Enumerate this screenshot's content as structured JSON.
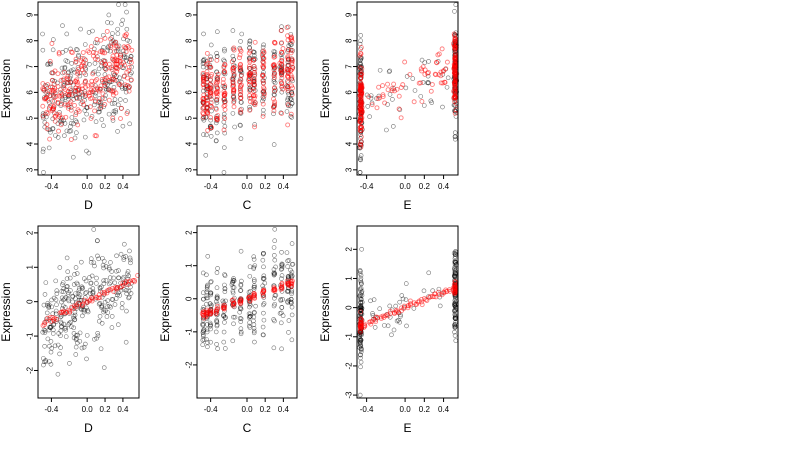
{
  "chart_data": [
    {
      "type": "scatter",
      "xlabel": "D",
      "ylabel": "Expression",
      "xlim": [
        -0.55,
        0.58
      ],
      "ylim": [
        2.8,
        9.5
      ],
      "xticks": [
        -0.4,
        0.0,
        0.2,
        0.4
      ],
      "xtick_labels": [
        "-0.4",
        "0.0",
        "0.2",
        "0.4"
      ],
      "yticks": [
        3,
        4,
        5,
        6,
        7,
        8,
        9
      ],
      "ytick_labels": [
        "3",
        "4",
        "5",
        "6",
        "7",
        "8",
        "9"
      ],
      "series": [
        {
          "color": "#000000",
          "kind": "observed",
          "x_center": 0.0,
          "x_spread": 0.5,
          "y_center": 6.3,
          "y_spread": 1.05,
          "slope": 1.8
        },
        {
          "color": "#ff0000",
          "kind": "fitted",
          "x_center": 0.0,
          "x_spread": 0.5,
          "y_center": 6.3,
          "y_spread": 0.75,
          "slope": 1.8
        }
      ]
    },
    {
      "type": "scatter",
      "xlabel": "C",
      "ylabel": "Expression",
      "xlim": [
        -0.55,
        0.55
      ],
      "ylim": [
        2.8,
        9.5
      ],
      "xticks": [
        -0.4,
        0.0,
        0.2,
        0.4
      ],
      "xtick_labels": [
        "-0.4",
        "0.0",
        "0.2",
        "0.4"
      ],
      "yticks": [
        3,
        4,
        5,
        6,
        7,
        8,
        9
      ],
      "ytick_labels": [
        "3",
        "4",
        "5",
        "6",
        "7",
        "8",
        "9"
      ],
      "x_groups": [
        -0.48,
        -0.44,
        -0.4,
        -0.33,
        -0.25,
        -0.15,
        -0.07,
        0.03,
        0.08,
        0.18,
        0.3,
        0.38,
        0.45,
        0.49
      ],
      "series": [
        {
          "color": "#000000",
          "kind": "observed",
          "y_center": 6.4,
          "y_spread": 0.95,
          "slope": 1.2
        },
        {
          "color": "#ff0000",
          "kind": "fitted",
          "y_center": 6.4,
          "y_spread": 0.7,
          "slope": 1.2
        }
      ]
    },
    {
      "type": "scatter",
      "xlabel": "E",
      "ylabel": "Expression",
      "xlim": [
        -0.5,
        0.55
      ],
      "ylim": [
        2.8,
        9.5
      ],
      "xticks": [
        -0.4,
        0.0,
        0.2,
        0.4
      ],
      "xtick_labels": [
        "-0.4",
        "0.0",
        "0.2",
        "0.4"
      ],
      "yticks": [
        3,
        4,
        5,
        6,
        7,
        8,
        9
      ],
      "ytick_labels": [
        "3",
        "4",
        "5",
        "6",
        "7",
        "8",
        "9"
      ],
      "x_groups": [
        -0.46,
        0.52
      ],
      "series": [
        {
          "color": "#000000",
          "kind": "observed",
          "y_center": 6.2,
          "y_spread": 1.05,
          "slope": 1.4
        },
        {
          "color": "#ff0000",
          "kind": "fitted",
          "y_center": 6.2,
          "y_spread": 0.75,
          "slope": 1.4
        }
      ]
    },
    {
      "type": "scatter",
      "xlabel": "D",
      "ylabel": "Expression",
      "xlim": [
        -0.55,
        0.58
      ],
      "ylim": [
        -2.8,
        2.2
      ],
      "xticks": [
        -0.4,
        0.0,
        0.2,
        0.4
      ],
      "xtick_labels": [
        "-0.4",
        "0.0",
        "0.2",
        "0.4"
      ],
      "yticks": [
        -2,
        -1,
        0,
        1,
        2
      ],
      "ytick_labels": [
        "-2",
        "-1",
        "0",
        "1",
        "2"
      ],
      "series": [
        {
          "color": "#000000",
          "kind": "observed",
          "x_center": 0.0,
          "x_spread": 0.5,
          "y_center": 0.0,
          "y_spread": 0.65,
          "slope": 1.25
        },
        {
          "color": "#ff0000",
          "kind": "fitted_line",
          "x_range": [
            -0.5,
            0.55
          ],
          "intercept": 0.0,
          "slope": 1.25
        }
      ]
    },
    {
      "type": "scatter",
      "xlabel": "C",
      "ylabel": "Expression",
      "xlim": [
        -0.55,
        0.55
      ],
      "ylim": [
        -3.0,
        2.2
      ],
      "xticks": [
        -0.4,
        0.0,
        0.2,
        0.4
      ],
      "xtick_labels": [
        "-0.4",
        "0.0",
        "0.2",
        "0.4"
      ],
      "yticks": [
        -2,
        -1,
        0,
        1,
        2
      ],
      "ytick_labels": [
        "-2",
        "-1",
        "0",
        "1",
        "2"
      ],
      "x_groups": [
        -0.48,
        -0.44,
        -0.4,
        -0.33,
        -0.25,
        -0.15,
        -0.07,
        0.03,
        0.08,
        0.18,
        0.3,
        0.38,
        0.45,
        0.49
      ],
      "series": [
        {
          "color": "#000000",
          "kind": "observed",
          "y_center": 0.0,
          "y_spread": 0.65,
          "slope": 1.0
        },
        {
          "color": "#ff0000",
          "kind": "fitted_groups",
          "intercept": 0.0,
          "slope": 1.0
        }
      ]
    },
    {
      "type": "scatter",
      "xlabel": "E",
      "ylabel": "Expression",
      "xlim": [
        -0.5,
        0.55
      ],
      "ylim": [
        -3.1,
        2.8
      ],
      "xticks": [
        -0.4,
        0.0,
        0.2,
        0.4
      ],
      "xtick_labels": [
        "-0.4",
        "0.0",
        "0.2",
        "0.4"
      ],
      "yticks": [
        -3,
        -2,
        -1,
        0,
        1,
        2
      ],
      "ytick_labels": [
        "-3",
        "-2",
        "-1",
        "0",
        "1",
        "2"
      ],
      "x_groups": [
        -0.46,
        0.52
      ],
      "series": [
        {
          "color": "#000000",
          "kind": "observed",
          "y_center": 0.0,
          "y_spread": 0.75,
          "slope": 1.3
        },
        {
          "color": "#ff0000",
          "kind": "fitted_line",
          "x_range": [
            -0.46,
            0.52
          ],
          "intercept": 0.0,
          "slope": 1.3
        }
      ]
    }
  ]
}
